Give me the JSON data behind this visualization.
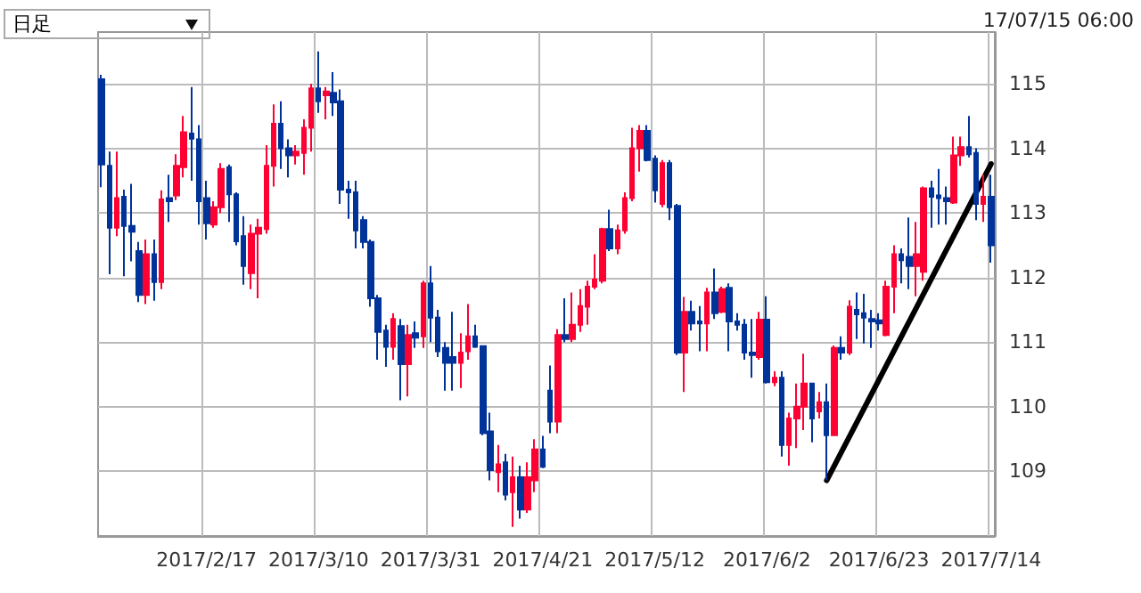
{
  "chart_data": {
    "type": "candlestick",
    "annotations": [
      "日足",
      "17/07/15 06:00"
    ],
    "categories": [
      null,
      null,
      null,
      null,
      null,
      null,
      null,
      null,
      null,
      null,
      null,
      null,
      null,
      null,
      "2017/2/17",
      null,
      null,
      null,
      null,
      null,
      null,
      null,
      null,
      null,
      null,
      null,
      null,
      null,
      null,
      "2017/3/10",
      null,
      null,
      null,
      null,
      null,
      null,
      null,
      null,
      null,
      null,
      null,
      null,
      null,
      null,
      "2017/3/31",
      null,
      null,
      null,
      null,
      null,
      null,
      null,
      null,
      null,
      null,
      null,
      null,
      null,
      null,
      "2017/4/21",
      null,
      null,
      null,
      null,
      null,
      null,
      null,
      null,
      null,
      null,
      null,
      null,
      null,
      null,
      "2017/5/12",
      null,
      null,
      null,
      null,
      null,
      null,
      null,
      null,
      null,
      null,
      null,
      null,
      null,
      null,
      "2017/6/2",
      null,
      null,
      null,
      null,
      null,
      null,
      null,
      null,
      null,
      null,
      null,
      null,
      null,
      null,
      "2017/6/23",
      null,
      null,
      null,
      null,
      null,
      null,
      null,
      null,
      null,
      null,
      null,
      null,
      null,
      null,
      "2017/7/14"
    ],
    "ohlc": [
      [
        115.07,
        115.14,
        113.4,
        113.75
      ],
      [
        113.73,
        113.95,
        112.05,
        112.77
      ],
      [
        112.77,
        113.95,
        112.64,
        113.23
      ],
      [
        113.25,
        113.36,
        112.02,
        112.8
      ],
      [
        112.8,
        113.45,
        112.25,
        112.71
      ],
      [
        112.41,
        112.55,
        111.62,
        111.73
      ],
      [
        111.73,
        112.59,
        111.59,
        112.36
      ],
      [
        112.36,
        112.59,
        111.64,
        111.93
      ],
      [
        111.93,
        113.35,
        111.82,
        113.21
      ],
      [
        113.23,
        113.59,
        112.86,
        113.18
      ],
      [
        113.27,
        113.91,
        113.2,
        113.73
      ],
      [
        113.71,
        114.5,
        113.55,
        114.25
      ],
      [
        114.23,
        114.95,
        113.5,
        114.15
      ],
      [
        114.14,
        114.36,
        112.82,
        113.18
      ],
      [
        113.23,
        113.5,
        112.59,
        112.84
      ],
      [
        112.82,
        113.18,
        112.77,
        113.09
      ],
      [
        113.09,
        113.77,
        113.0,
        113.68
      ],
      [
        113.71,
        113.75,
        112.86,
        113.29
      ],
      [
        113.29,
        113.32,
        112.5,
        112.56
      ],
      [
        112.64,
        112.95,
        111.89,
        112.18
      ],
      [
        112.07,
        112.82,
        111.82,
        112.68
      ],
      [
        112.68,
        112.91,
        111.68,
        112.77
      ],
      [
        112.75,
        114.05,
        112.68,
        113.73
      ],
      [
        113.73,
        114.68,
        113.41,
        114.38
      ],
      [
        114.38,
        114.73,
        113.68,
        114.0
      ],
      [
        114.0,
        114.14,
        113.55,
        113.89
      ],
      [
        113.89,
        114.05,
        113.75,
        113.95
      ],
      [
        113.93,
        114.45,
        113.59,
        114.32
      ],
      [
        114.32,
        115.0,
        113.95,
        114.93
      ],
      [
        114.93,
        115.5,
        114.55,
        114.73
      ],
      [
        114.82,
        114.95,
        114.45,
        114.88
      ],
      [
        114.86,
        115.18,
        114.5,
        114.71
      ],
      [
        114.73,
        114.91,
        113.14,
        113.36
      ],
      [
        113.36,
        113.5,
        112.91,
        113.32
      ],
      [
        113.32,
        113.5,
        112.45,
        112.73
      ],
      [
        112.89,
        112.95,
        112.45,
        112.55
      ],
      [
        112.55,
        112.59,
        111.55,
        111.68
      ],
      [
        111.68,
        111.73,
        110.73,
        111.16
      ],
      [
        111.18,
        111.27,
        110.62,
        110.93
      ],
      [
        110.93,
        111.45,
        110.73,
        111.36
      ],
      [
        111.25,
        111.36,
        110.1,
        110.66
      ],
      [
        110.66,
        111.27,
        110.16,
        111.11
      ],
      [
        111.14,
        111.32,
        110.91,
        111.07
      ],
      [
        111.09,
        111.95,
        110.91,
        111.91
      ],
      [
        111.91,
        112.18,
        111.0,
        111.38
      ],
      [
        111.38,
        111.5,
        110.77,
        110.86
      ],
      [
        110.91,
        111.0,
        110.25,
        110.68
      ],
      [
        110.77,
        111.47,
        110.25,
        110.68
      ],
      [
        110.68,
        111.14,
        110.29,
        110.84
      ],
      [
        110.86,
        111.59,
        110.73,
        111.09
      ],
      [
        111.09,
        111.27,
        110.91,
        110.93
      ],
      [
        110.94,
        110.95,
        109.56,
        109.59
      ],
      [
        109.62,
        109.91,
        108.86,
        109.02
      ],
      [
        108.99,
        109.41,
        108.68,
        109.11
      ],
      [
        109.14,
        109.27,
        108.55,
        108.64
      ],
      [
        108.68,
        109.23,
        108.14,
        108.91
      ],
      [
        108.91,
        109.09,
        108.27,
        108.41
      ],
      [
        108.41,
        109.14,
        108.36,
        108.91
      ],
      [
        108.86,
        109.5,
        108.68,
        109.34
      ],
      [
        109.34,
        109.55,
        109.05,
        109.07
      ],
      [
        110.25,
        110.64,
        109.59,
        109.77
      ],
      [
        109.77,
        111.2,
        109.59,
        111.11
      ],
      [
        111.11,
        111.68,
        111.0,
        111.05
      ],
      [
        111.05,
        111.77,
        111.0,
        111.27
      ],
      [
        111.27,
        111.82,
        111.16,
        111.56
      ],
      [
        111.55,
        111.95,
        111.27,
        111.86
      ],
      [
        111.86,
        112.36,
        111.82,
        111.97
      ],
      [
        111.95,
        112.77,
        111.91,
        112.75
      ],
      [
        112.75,
        113.05,
        112.41,
        112.45
      ],
      [
        112.45,
        112.82,
        112.36,
        112.73
      ],
      [
        112.73,
        113.32,
        112.68,
        113.23
      ],
      [
        113.23,
        114.32,
        113.18,
        114.0
      ],
      [
        114.0,
        114.36,
        113.64,
        114.27
      ],
      [
        114.27,
        114.36,
        113.8,
        113.82
      ],
      [
        113.84,
        113.89,
        113.16,
        113.35
      ],
      [
        113.14,
        113.82,
        113.09,
        113.77
      ],
      [
        113.77,
        113.82,
        112.89,
        113.09
      ],
      [
        113.11,
        113.14,
        110.8,
        110.84
      ],
      [
        110.84,
        111.7,
        110.23,
        111.47
      ],
      [
        111.47,
        111.64,
        111.18,
        111.29
      ],
      [
        111.32,
        111.56,
        110.86,
        111.29
      ],
      [
        111.29,
        111.84,
        110.86,
        111.77
      ],
      [
        111.77,
        112.14,
        111.36,
        111.45
      ],
      [
        111.47,
        111.86,
        111.45,
        111.82
      ],
      [
        111.84,
        111.91,
        110.86,
        111.32
      ],
      [
        111.32,
        111.45,
        111.18,
        111.27
      ],
      [
        111.27,
        111.36,
        110.73,
        110.84
      ],
      [
        110.84,
        111.36,
        110.45,
        110.8
      ],
      [
        110.77,
        111.47,
        110.73,
        111.35
      ],
      [
        111.35,
        111.71,
        110.36,
        110.38
      ],
      [
        110.38,
        110.55,
        110.32,
        110.45
      ],
      [
        110.45,
        110.55,
        109.23,
        109.41
      ],
      [
        109.41,
        109.91,
        109.09,
        109.82
      ],
      [
        109.82,
        110.36,
        109.36,
        110.0
      ],
      [
        110.0,
        110.82,
        109.64,
        110.36
      ],
      [
        110.36,
        110.36,
        109.45,
        109.82
      ],
      [
        109.93,
        110.23,
        109.82,
        110.07
      ],
      [
        110.07,
        110.36,
        108.86,
        109.56
      ],
      [
        109.56,
        110.95,
        109.55,
        110.91
      ],
      [
        110.91,
        111.09,
        110.73,
        110.84
      ],
      [
        110.84,
        111.65,
        110.8,
        111.55
      ],
      [
        111.5,
        111.77,
        111.05,
        111.43
      ],
      [
        111.45,
        111.75,
        110.98,
        111.38
      ],
      [
        111.36,
        111.5,
        110.91,
        111.32
      ],
      [
        111.34,
        111.45,
        111.18,
        111.29
      ],
      [
        111.11,
        111.95,
        111.09,
        111.86
      ],
      [
        111.86,
        112.5,
        111.45,
        112.36
      ],
      [
        112.36,
        112.45,
        111.91,
        112.27
      ],
      [
        112.32,
        112.93,
        111.82,
        112.18
      ],
      [
        112.18,
        112.86,
        111.71,
        112.36
      ],
      [
        112.09,
        113.41,
        111.95,
        113.38
      ],
      [
        113.38,
        113.5,
        112.77,
        113.25
      ],
      [
        113.27,
        113.68,
        112.82,
        113.23
      ],
      [
        113.23,
        113.41,
        112.82,
        113.18
      ],
      [
        113.16,
        114.18,
        113.14,
        113.89
      ],
      [
        113.89,
        114.18,
        113.73,
        114.02
      ],
      [
        114.02,
        114.5,
        113.86,
        113.91
      ],
      [
        113.93,
        114.0,
        112.89,
        113.14
      ],
      [
        113.14,
        113.59,
        112.86,
        113.25
      ],
      [
        113.25,
        113.59,
        112.23,
        112.5
      ]
    ],
    "colors": [
      "#003399",
      "#003399",
      "#ff0033",
      "#003399",
      "#003399",
      "#003399",
      "#ff0033",
      "#003399",
      "#ff0033",
      "#003399",
      "#ff0033",
      "#ff0033",
      "#003399",
      "#003399",
      "#003399",
      "#ff0033",
      "#ff0033",
      "#003399",
      "#003399",
      "#003399",
      "#ff0033",
      "#ff0033",
      "#ff0033",
      "#ff0033",
      "#003399",
      "#003399",
      "#ff0033",
      "#ff0033",
      "#ff0033",
      "#003399",
      "#ff0033",
      "#003399",
      "#003399",
      "#003399",
      "#003399",
      "#003399",
      "#003399",
      "#003399",
      "#003399",
      "#ff0033",
      "#003399",
      "#ff0033",
      "#003399",
      "#ff0033",
      "#003399",
      "#003399",
      "#003399",
      "#003399",
      "#ff0033",
      "#ff0033",
      "#003399",
      "#003399",
      "#003399",
      "#ff0033",
      "#003399",
      "#ff0033",
      "#003399",
      "#ff0033",
      "#ff0033",
      "#003399",
      "#003399",
      "#ff0033",
      "#003399",
      "#ff0033",
      "#ff0033",
      "#ff0033",
      "#ff0033",
      "#ff0033",
      "#003399",
      "#ff0033",
      "#ff0033",
      "#ff0033",
      "#ff0033",
      "#003399",
      "#003399",
      "#ff0033",
      "#003399",
      "#003399",
      "#ff0033",
      "#003399",
      "#003399",
      "#ff0033",
      "#003399",
      "#ff0033",
      "#003399",
      "#003399",
      "#003399",
      "#003399",
      "#ff0033",
      "#003399",
      "#ff0033",
      "#003399",
      "#ff0033",
      "#ff0033",
      "#ff0033",
      "#003399",
      "#ff0033",
      "#003399",
      "#ff0033",
      "#003399",
      "#ff0033",
      "#003399",
      "#003399",
      "#003399",
      "#003399",
      "#ff0033",
      "#ff0033",
      "#003399",
      "#003399",
      "#ff0033",
      "#ff0033",
      "#003399",
      "#003399",
      "#003399",
      "#ff0033",
      "#ff0033",
      "#003399",
      "#003399",
      "#ff0033",
      "#003399"
    ],
    "series": [
      {
        "type": "line",
        "color": "#000000",
        "values": [
          null,
          null,
          null,
          null,
          null,
          null,
          null,
          null,
          null,
          null,
          null,
          null,
          null,
          null,
          null,
          null,
          null,
          null,
          null,
          null,
          null,
          null,
          null,
          null,
          null,
          null,
          null,
          null,
          null,
          null,
          null,
          null,
          null,
          null,
          null,
          null,
          null,
          null,
          null,
          null,
          null,
          null,
          null,
          null,
          null,
          null,
          null,
          null,
          null,
          null,
          null,
          null,
          null,
          null,
          null,
          null,
          null,
          null,
          null,
          null,
          null,
          null,
          null,
          null,
          null,
          null,
          null,
          null,
          null,
          null,
          null,
          null,
          null,
          null,
          null,
          null,
          null,
          null,
          null,
          null,
          null,
          null,
          null,
          null,
          null,
          null,
          null,
          null,
          null,
          null,
          null,
          null,
          null,
          null,
          null,
          null,
          null,
          108.86,
          null,
          null,
          null,
          null,
          null,
          null,
          null,
          null,
          null,
          null,
          null,
          null,
          null,
          null,
          null,
          null,
          null,
          null,
          null,
          null,
          null,
          113.76
        ]
      }
    ],
    "ylim": [
      108,
      115.8
    ],
    "yticks": [
      109,
      110,
      111,
      112,
      113,
      114,
      115
    ],
    "grid": true
  }
}
